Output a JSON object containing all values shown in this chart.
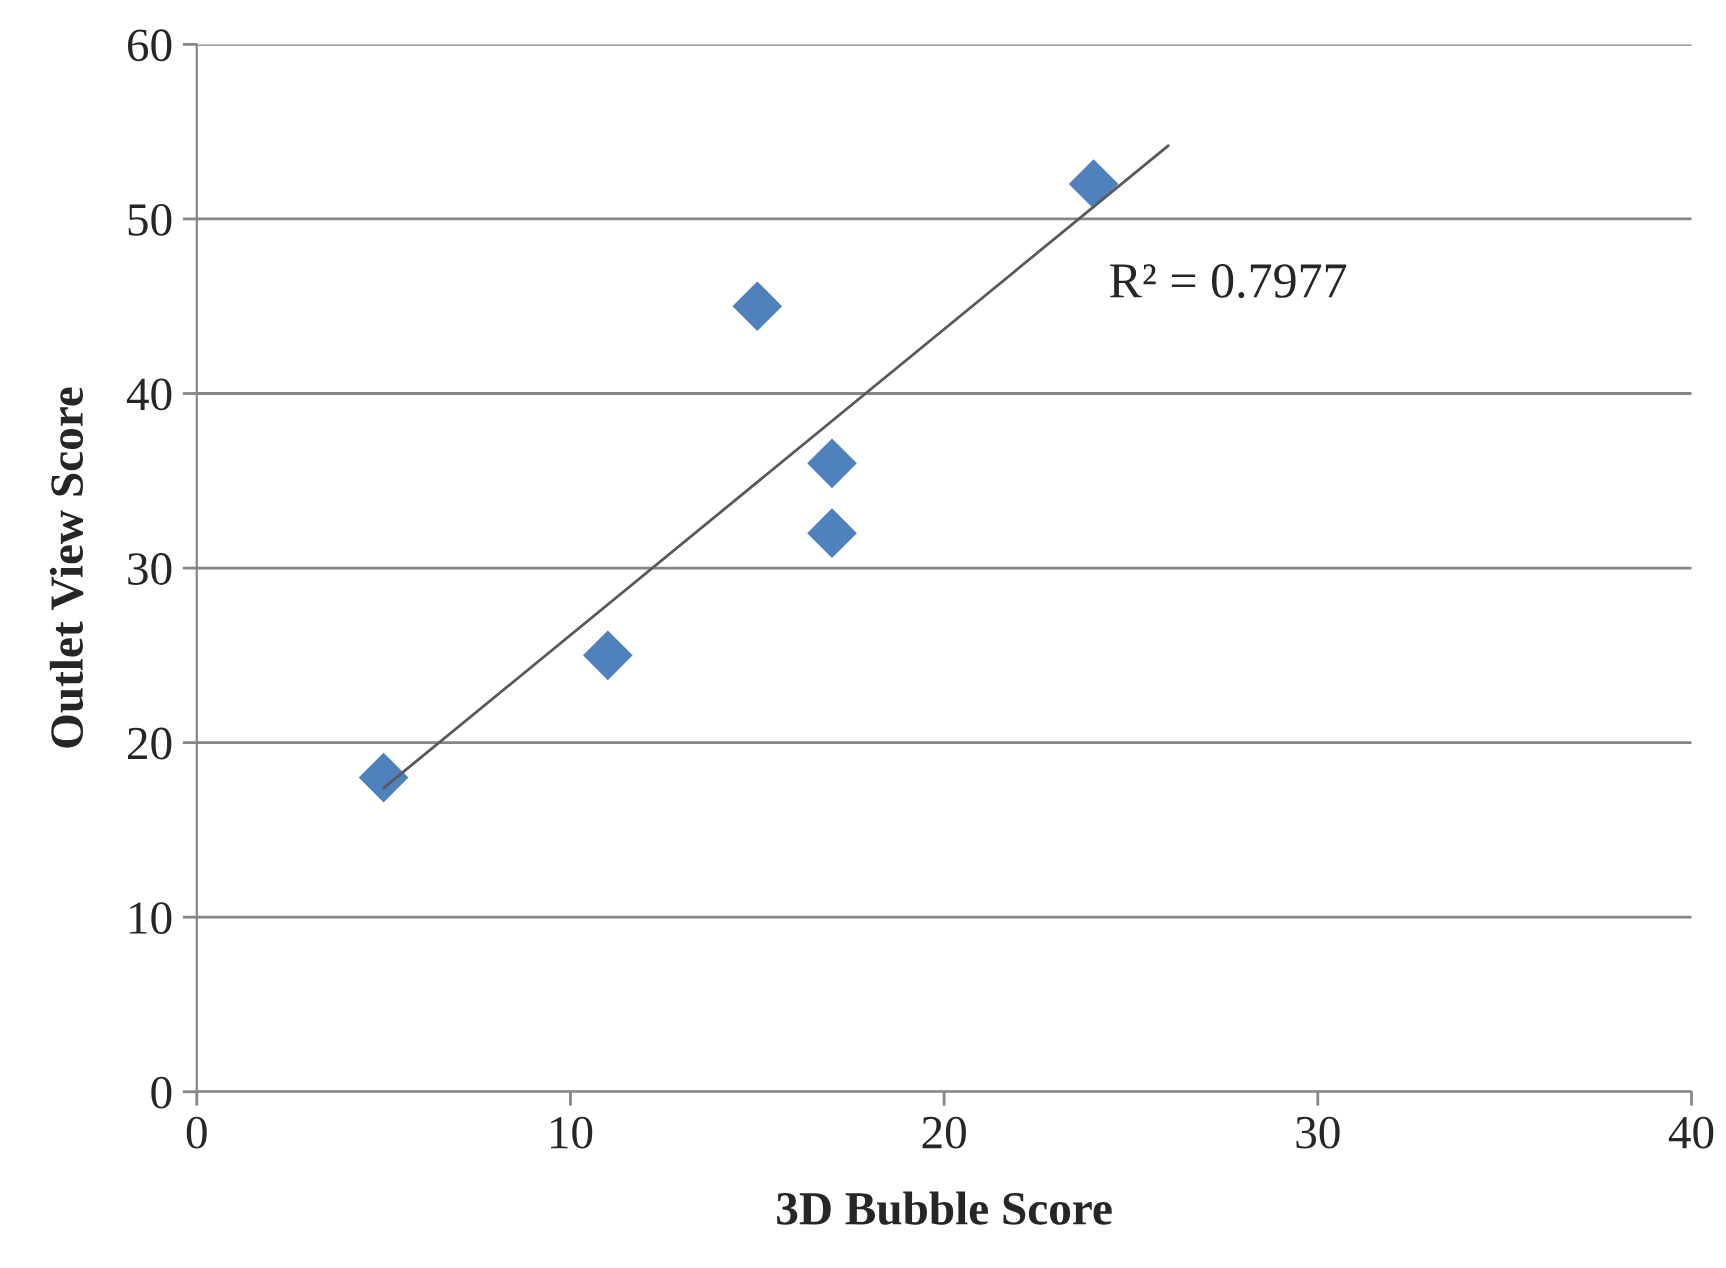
{
  "chart_data": {
    "type": "scatter",
    "xlabel": "3D Bubble Score",
    "ylabel": "Outlet View Score",
    "x": [
      5,
      11,
      15,
      17,
      17,
      24
    ],
    "series": [
      {
        "color": "#4f81bd",
        "values": [
          18,
          25,
          45,
          36,
          32,
          52
        ],
        "marker": "diamond"
      },
      {
        "type": "line",
        "color": "#595959",
        "x": [
          5,
          26
        ],
        "values": [
          17.4,
          54.2
        ],
        "marker": "none"
      }
    ],
    "annotations": [
      "R² = 0.7977"
    ],
    "xlim": [
      0,
      40
    ],
    "xticks": [
      0,
      10,
      20,
      30,
      40
    ],
    "ylim": [
      0,
      60
    ],
    "yticks": [
      0,
      10,
      20,
      30,
      40,
      50,
      60
    ],
    "grid": "y",
    "legend": false
  }
}
